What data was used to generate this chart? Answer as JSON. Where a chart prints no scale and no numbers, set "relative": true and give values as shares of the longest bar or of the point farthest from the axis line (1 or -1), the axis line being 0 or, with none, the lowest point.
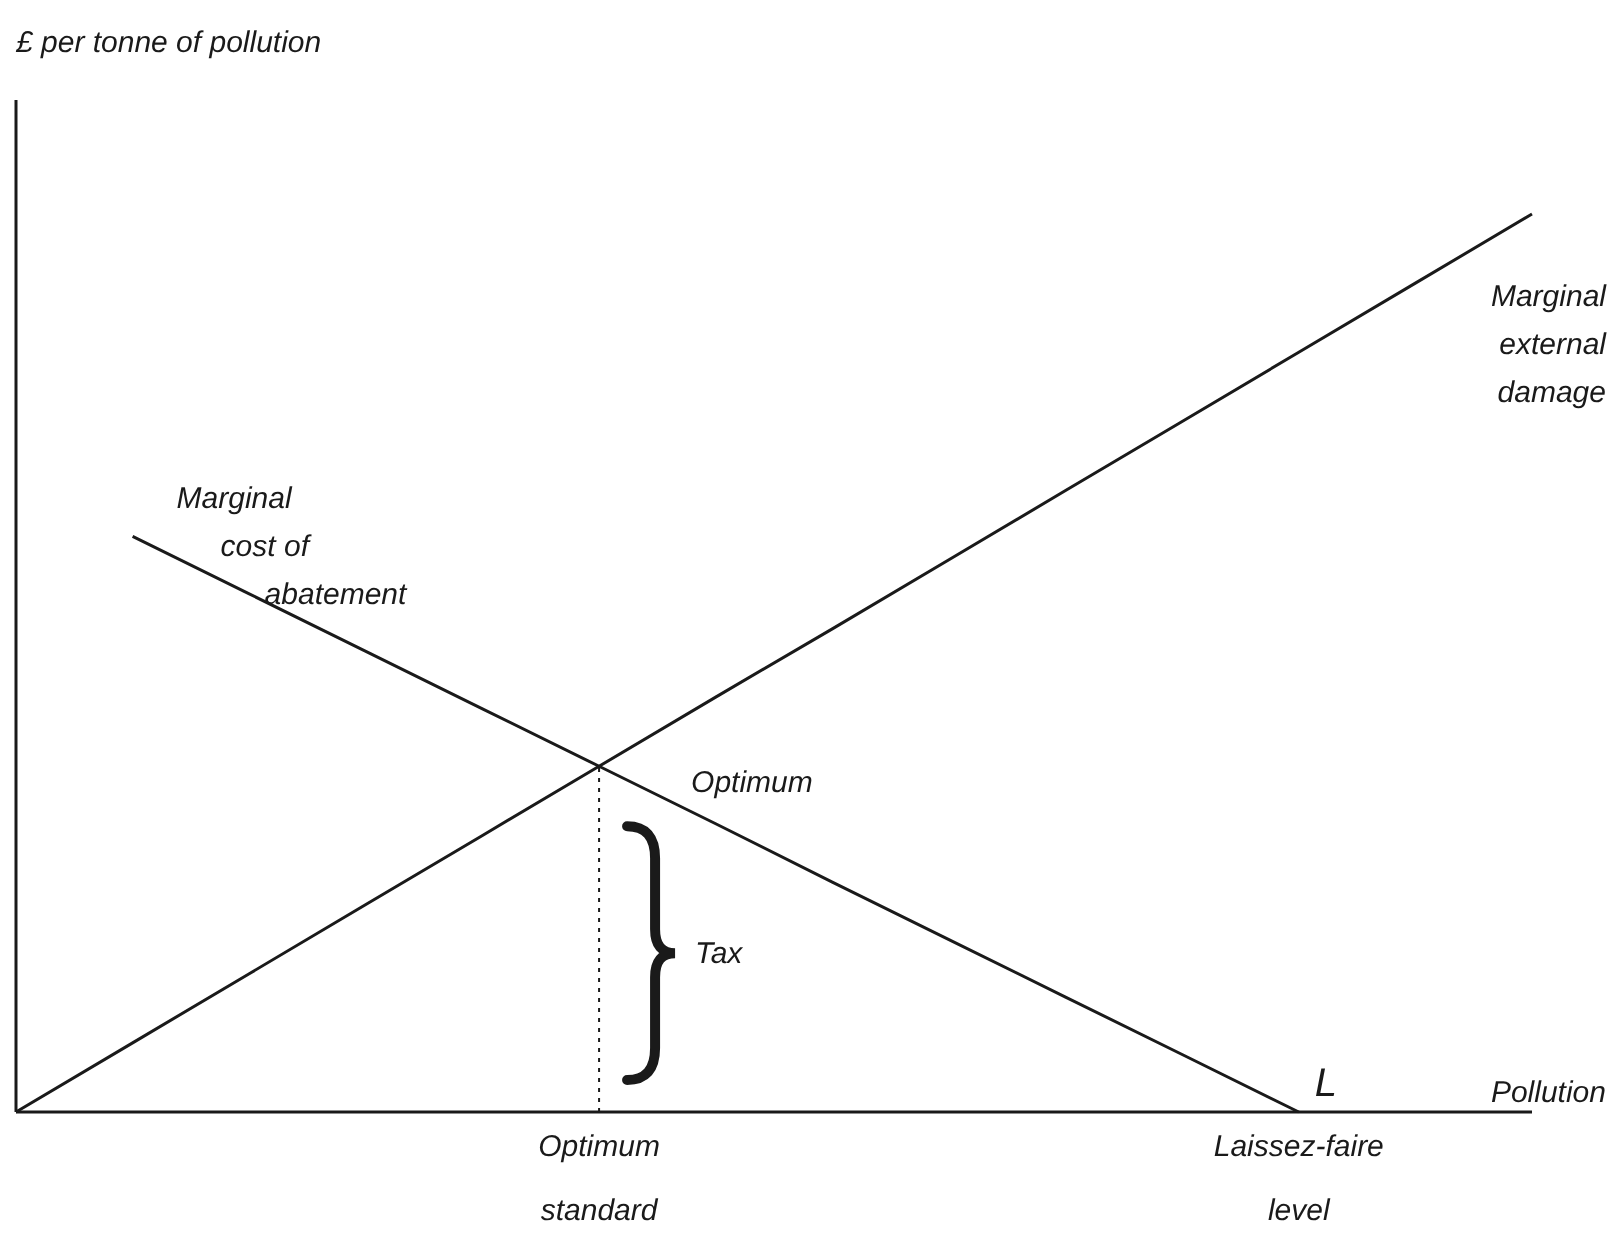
{
  "chart_data": {
    "type": "line",
    "relative": true,
    "xlabel": "Pollution",
    "categories": [
      null,
      null,
      null,
      null,
      null,
      "Optimum standard",
      null,
      null,
      null,
      null,
      null,
      "Laissez-faire level",
      null,
      null
    ],
    "series": [
      {
        "name": "Marginal cost of abatement",
        "color": "#1a1a1a",
        "values": [
          null,
          0.641,
          0.577,
          0.513,
          0.449,
          0.385,
          0.321,
          0.256,
          0.192,
          0.128,
          0.064,
          0,
          null,
          null
        ]
      },
      {
        "name": "Marginal external damage",
        "color": "#1a1a1a",
        "values": [
          0,
          0.077,
          0.154,
          0.231,
          0.308,
          0.385,
          0.462,
          0.538,
          0.615,
          0.692,
          0.769,
          0.846,
          0.923,
          1
        ]
      }
    ],
    "ref_lines": [
      {
        "axis": "x",
        "value": "Optimum standard",
        "color": "#1a1a1a",
        "line_style": "dotted"
      }
    ],
    "annotations": [
      "£ per tonne of pollution",
      "Optimum",
      "Tax",
      {
        "text": "L",
        "x": "Laissez-faire level",
        "y": 0
      }
    ],
    "grid": false,
    "legend": false,
    "marker": "none",
    "line_style": "solid"
  }
}
